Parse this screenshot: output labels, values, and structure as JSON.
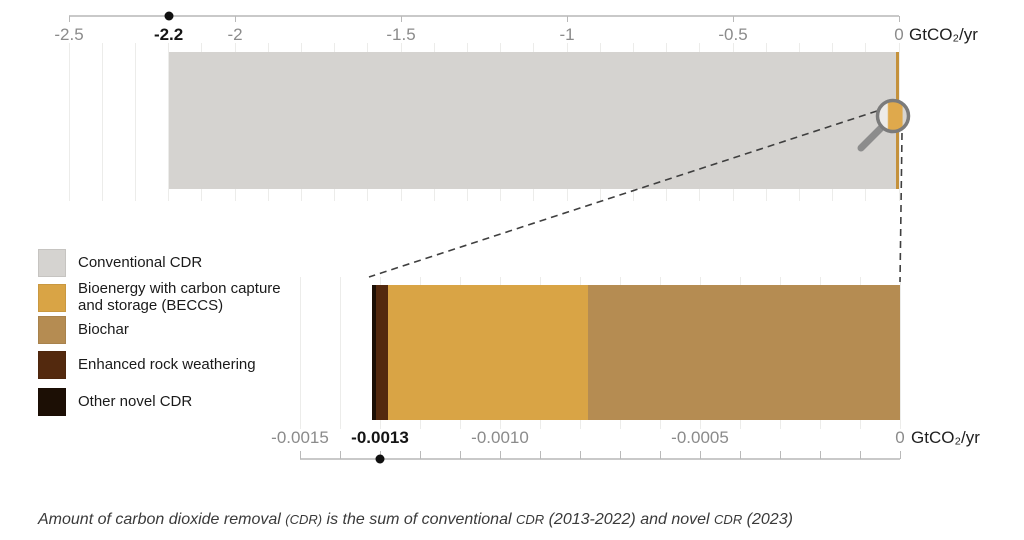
{
  "chart_data": [
    {
      "type": "bar",
      "id": "conventional-cdr-chart",
      "orientation": "horizontal",
      "unit_label": "GtCO₂/yr",
      "xlim": [
        -2.62,
        0
      ],
      "grid_step": 0.1,
      "grid": true,
      "tick_values": [
        -2.5,
        -2.0,
        -1.5,
        -1.0,
        -0.5,
        0
      ],
      "tick_labels": [
        "-2.5",
        "-2",
        "-1.5",
        "-1",
        "-0.5",
        "0"
      ],
      "highlight": {
        "value": -2.2,
        "label": "-2.2"
      },
      "segments": [
        {
          "name": "Conventional CDR",
          "value": -2.2,
          "color": "#d5d3d0"
        }
      ],
      "edge_stripe": {
        "color": "#c4913b"
      }
    },
    {
      "type": "bar",
      "id": "novel-cdr-chart",
      "orientation": "horizontal",
      "unit_label": "GtCO₂/yr",
      "xlim": [
        -0.00155,
        0
      ],
      "grid_step": 0.0001,
      "grid": true,
      "tick_values": [
        -0.0015,
        -0.001,
        -0.0005,
        0
      ],
      "tick_labels": [
        "-0.0015",
        "-0.0010",
        "-0.0005",
        "0"
      ],
      "minor_tick_step": 0.0001,
      "highlight": {
        "value": -0.0013,
        "label": "-0.0013"
      },
      "segments": [
        {
          "name": "Biochar",
          "value": -0.00078,
          "color": "#b58c52"
        },
        {
          "name": "Bioenergy with carbon capture and storage (BECCS)",
          "value": -0.0005,
          "color": "#d9a445"
        },
        {
          "name": "Enhanced rock weathering",
          "value": -3e-05,
          "color": "#53290e"
        },
        {
          "name": "Other novel CDR",
          "value": -1e-05,
          "color": "#1c0f05"
        }
      ]
    }
  ],
  "legend": {
    "items": [
      {
        "label": "Conventional CDR",
        "color": "#d5d3d0"
      },
      {
        "label": "Bioenergy with carbon capture and storage (BECCS)",
        "color": "#d9a445"
      },
      {
        "label": "Biochar",
        "color": "#b58c52"
      },
      {
        "label": "Enhanced rock weathering",
        "color": "#53290e"
      },
      {
        "label": "Other novel CDR",
        "color": "#1c0f05"
      }
    ]
  },
  "caption": {
    "segments": [
      {
        "text": "Amount of carbon dioxide removal ",
        "small": false
      },
      {
        "text": "(CDR)",
        "small": true
      },
      {
        "text": " is the sum of conventional ",
        "small": false
      },
      {
        "text": "CDR",
        "small": true
      },
      {
        "text": " (2013-2022) and novel ",
        "small": false
      },
      {
        "text": "CDR",
        "small": true
      },
      {
        "text": " (2023)",
        "small": false
      }
    ]
  },
  "icons": {
    "magnifier": "magnifying-glass-icon"
  },
  "colors": {
    "axis_label_gray": "#8b8b8b",
    "highlight_black": "#141414",
    "gridline": "#ececea",
    "axis_line": "#c9c9c9",
    "dashed_connector": "#3f3f3f",
    "magnifier_gray": "#7b7b7b"
  }
}
